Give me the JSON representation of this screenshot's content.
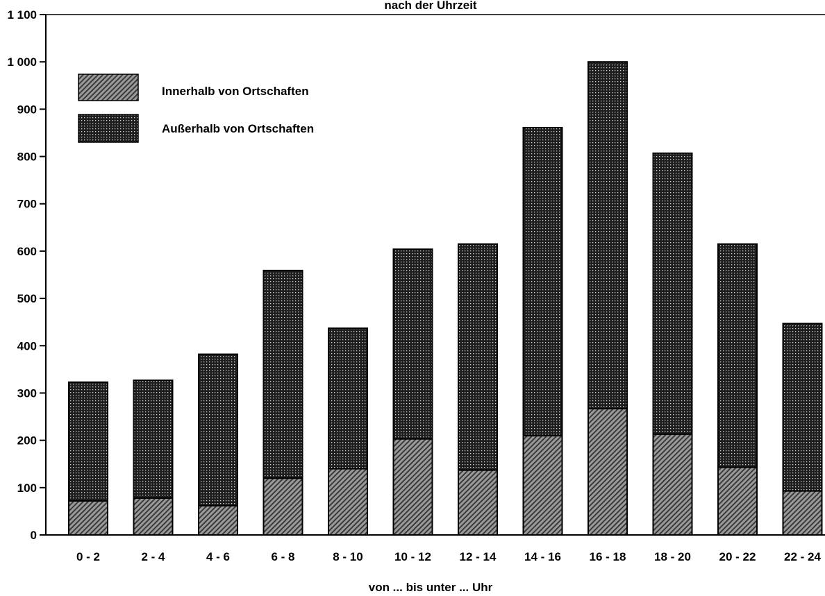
{
  "chart_data": {
    "type": "bar",
    "stacked": true,
    "title": "nach der Uhrzeit",
    "xlabel": "von ... bis unter ... Uhr",
    "ylabel": "",
    "ylim": [
      0,
      1100
    ],
    "yticks": [
      0,
      100,
      200,
      300,
      400,
      500,
      600,
      700,
      800,
      900,
      1000,
      1100
    ],
    "ytick_labels": [
      "0",
      "100",
      "200",
      "300",
      "400",
      "500",
      "600",
      "700",
      "800",
      "900",
      "1 000",
      "1 100"
    ],
    "categories": [
      "0 - 2",
      "2 - 4",
      "4 - 6",
      "6 - 8",
      "8 - 10",
      "10 - 12",
      "12 - 14",
      "14 - 16",
      "16 - 18",
      "18 - 20",
      "20 - 22",
      "22 - 24"
    ],
    "grid": false,
    "legend_position": "top-left",
    "series": [
      {
        "name": "Innerhalb von Ortschaften",
        "values": [
          72,
          78,
          62,
          120,
          140,
          203,
          137,
          210,
          267,
          213,
          143,
          93
        ],
        "color": "#8a8a8a",
        "pattern": "hatch"
      },
      {
        "name": "Außerhalb von Ortschaften",
        "values": [
          251,
          249,
          320,
          439,
          297,
          401,
          478,
          651,
          733,
          594,
          472,
          354
        ],
        "color": "#2e2e2e",
        "pattern": "dots"
      }
    ]
  }
}
